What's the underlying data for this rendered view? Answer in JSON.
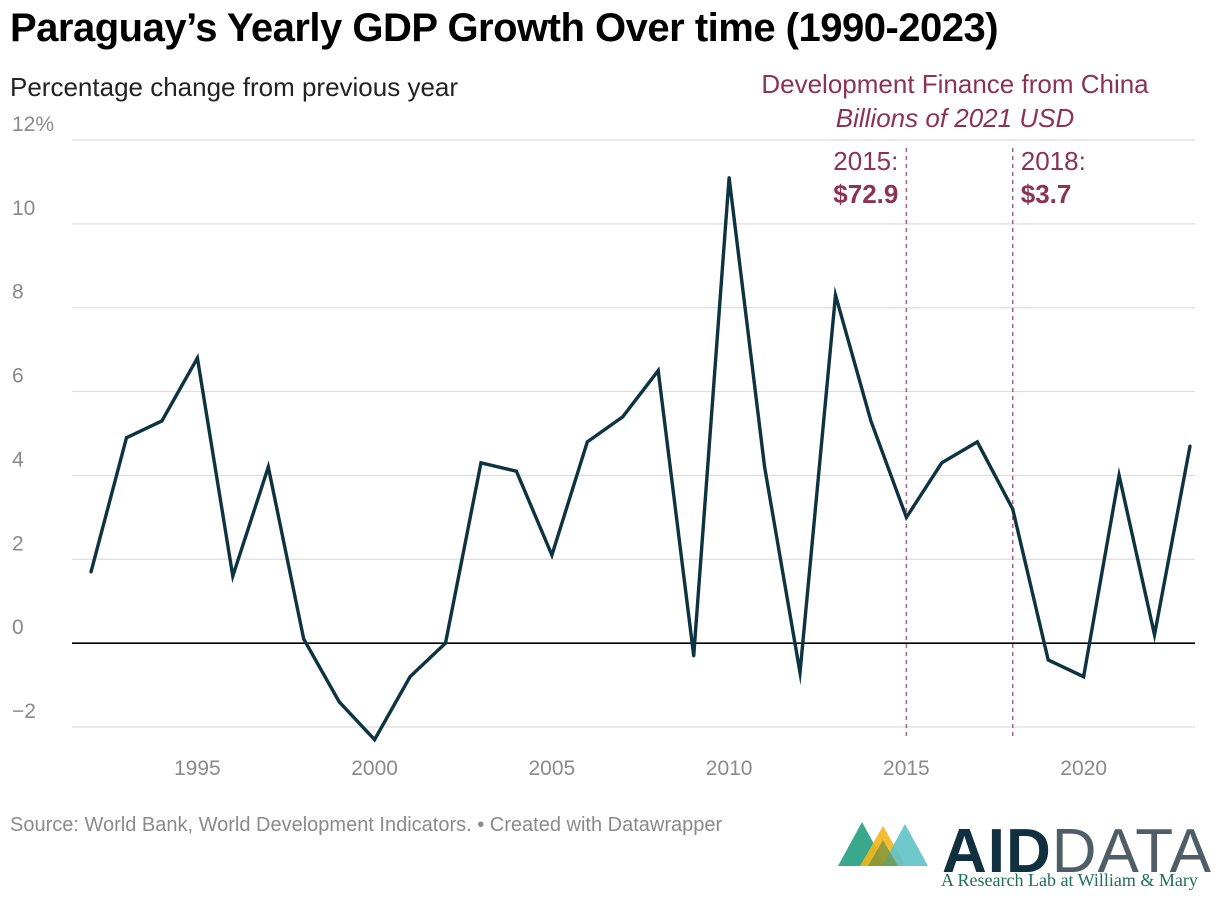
{
  "title": "Paraguay’s Yearly GDP Growth Over time (1990-2023)",
  "subtitle": "Percentage change from previous year",
  "source": "Source: World Bank, World Development Indicators. • Created with Datawrapper",
  "logo": {
    "word_aid": "AID",
    "word_data": "DATA",
    "tagline": "A Research Lab at William & Mary"
  },
  "colors": {
    "line": "#0e3340",
    "annotation": "#8c3255",
    "grid": "#dddddd",
    "zero": "#000000",
    "tick": "#8a8a8a"
  },
  "chart_data": {
    "type": "line",
    "ylim": [
      -2.4,
      12
    ],
    "xlim": [
      1992,
      2023
    ],
    "yticks": [
      -2,
      0,
      2,
      4,
      6,
      8,
      10,
      12
    ],
    "ytick_labels": [
      "−2",
      "0",
      "2",
      "4",
      "6",
      "8",
      "10",
      "12%"
    ],
    "xticks": [
      1995,
      2000,
      2005,
      2010,
      2015,
      2020
    ],
    "xtick_labels": [
      "1995",
      "2000",
      "2005",
      "2010",
      "2015",
      "2020"
    ],
    "grid": true,
    "x": [
      1992,
      1993,
      1994,
      1995,
      1996,
      1997,
      1998,
      1999,
      2000,
      2001,
      2002,
      2003,
      2004,
      2005,
      2006,
      2007,
      2008,
      2009,
      2010,
      2011,
      2012,
      2013,
      2014,
      2015,
      2016,
      2017,
      2018,
      2019,
      2020,
      2021,
      2022,
      2023
    ],
    "series": [
      {
        "values": [
          1.7,
          4.9,
          5.3,
          6.8,
          1.6,
          4.2,
          0.1,
          -1.4,
          -2.3,
          -0.8,
          0.0,
          4.3,
          4.1,
          2.1,
          4.8,
          5.4,
          6.5,
          -0.3,
          11.1,
          4.2,
          -0.7,
          8.3,
          5.3,
          3.0,
          4.3,
          4.8,
          3.2,
          -0.4,
          -0.8,
          4.0,
          0.2,
          4.7
        ]
      }
    ],
    "annotations": {
      "heading": "Development Finance from China",
      "units": "Billions of 2021 USD",
      "markers": [
        {
          "x": 2015,
          "label": "2015:",
          "value": "$72.9"
        },
        {
          "x": 2018,
          "label": "2018:",
          "value": "$3.7"
        }
      ]
    }
  }
}
